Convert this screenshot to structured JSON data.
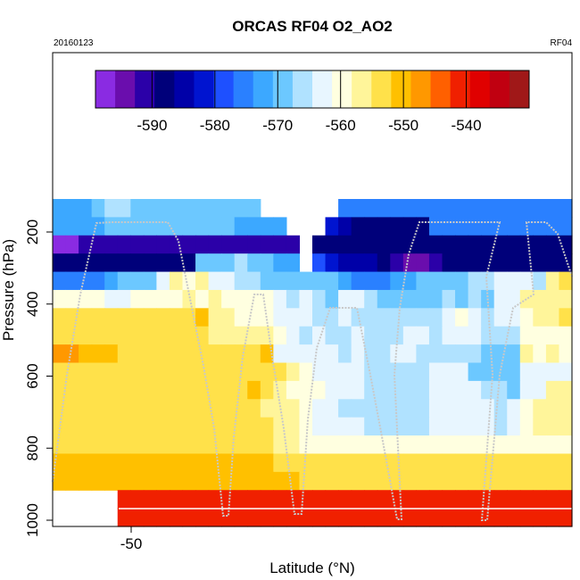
{
  "chart_data": {
    "type": "heatmap",
    "title": "ORCAS RF04 O2_AO2",
    "subtitle_left": "20160123",
    "subtitle_right": "RF04",
    "xlabel": "Latitude (°N)",
    "ylabel": "Pressure (hPa)",
    "x_ticks": [
      "-50"
    ],
    "y_ticks": [
      "200",
      "400",
      "600",
      "800",
      "1000"
    ],
    "colorbar": {
      "range": [
        -599,
        -530
      ],
      "ticks": [
        "-590",
        "-580",
        "-570",
        "-560",
        "-550",
        "-540"
      ],
      "colors": [
        "#8a2be2",
        "#6a0dad",
        "#2b00a8",
        "#00007a",
        "#0000a8",
        "#0014d0",
        "#1e50ff",
        "#2a80ff",
        "#3ca8ff",
        "#6cc8ff",
        "#b0e2ff",
        "#e8f6ff",
        "#ffffe0",
        "#fff59a",
        "#ffe14a",
        "#ffc000",
        "#ff9800",
        "#ff6000",
        "#f02000",
        "#e00000",
        "#c00010",
        "#a01818"
      ]
    },
    "levels_hPa": [
      150,
      200,
      250,
      300,
      350,
      400,
      450,
      500,
      550,
      600,
      650,
      700,
      750,
      800,
      850,
      900,
      950,
      1000
    ],
    "grid_note": "rows = pressure levels (top to bottom), columns = latitude bins west to east; values in colorbar units, null = no data",
    "values": [
      [
        -572,
        -572,
        -572,
        -570,
        -566,
        -566,
        -568,
        -568,
        -568,
        -568,
        -568,
        -568,
        -568,
        -568,
        -568,
        -568,
        null,
        null,
        null,
        null,
        null,
        null,
        -574,
        -574,
        -574,
        -574,
        -574,
        -574,
        -574,
        -574,
        -574,
        -574,
        -574,
        -574,
        -574,
        -574,
        -574,
        -574,
        -574,
        -574
      ],
      [
        -572,
        -572,
        -572,
        -572,
        -568,
        -568,
        -568,
        -570,
        -570,
        -570,
        -570,
        -570,
        -570,
        -570,
        -571,
        -571,
        -571,
        -571,
        null,
        null,
        null,
        -583,
        -585,
        -587,
        -587,
        -587,
        -587,
        -587,
        -587,
        -574,
        -574,
        -574,
        -574,
        -574,
        -574,
        -574,
        -574,
        -574,
        -574,
        -574
      ],
      [
        -597,
        -597,
        -591,
        -591,
        -591,
        -591,
        -591,
        -591,
        -591,
        -591,
        -591,
        -591,
        -591,
        -591,
        -591,
        -591,
        -591,
        -591,
        -591,
        null,
        -589,
        -589,
        -589,
        -589,
        -589,
        -589,
        -589,
        -589,
        -589,
        -589,
        -589,
        -589,
        -589,
        -589,
        -589,
        -589,
        -589,
        -589,
        -589,
        -589
      ],
      [
        -589,
        -589,
        -589,
        -589,
        -589,
        -589,
        -589,
        -589,
        -589,
        -589,
        -589,
        -568,
        -570,
        -568,
        -566,
        -568,
        -570,
        -573,
        -573,
        null,
        -580,
        -582,
        -585,
        -586,
        -586,
        -589,
        -591,
        -594,
        -593,
        -591,
        -589,
        -589,
        -587,
        -587,
        -587,
        -587,
        -587,
        -587,
        -587,
        -589
      ],
      [
        -574,
        -576,
        -574,
        -576,
        -572,
        -570,
        -568,
        -570,
        -562,
        -558,
        -560,
        -558,
        -562,
        -564,
        -566,
        -566,
        -568,
        -570,
        -568,
        -570,
        -570,
        -568,
        -572,
        -574,
        -574,
        -576,
        -572,
        -572,
        -568,
        -570,
        -568,
        -570,
        -566,
        -566,
        -564,
        -564,
        -562,
        -566,
        -558,
        -554
      ],
      [
        -560,
        -561,
        -560,
        -560,
        -562,
        -562,
        -561,
        -560,
        -560,
        -560,
        -558,
        -560,
        -558,
        -560,
        -559,
        -559,
        -561,
        -563,
        -566,
        -564,
        -566,
        -568,
        -564,
        -562,
        -566,
        -570,
        -570,
        -570,
        -568,
        -568,
        -566,
        -568,
        -566,
        -568,
        -564,
        -562,
        -558,
        -558,
        -556,
        -558
      ],
      [
        -552,
        -552,
        -554,
        -554,
        -553,
        -553,
        -553,
        -553,
        -553,
        -553,
        -553,
        -550,
        -556,
        -558,
        -559,
        -561,
        -561,
        -563,
        -563,
        -563,
        -565,
        -567,
        -563,
        -565,
        -565,
        -565,
        -567,
        -567,
        -565,
        -565,
        -563,
        -561,
        -563,
        -565,
        -562,
        -563,
        -560,
        -558,
        -557,
        -552
      ],
      [
        -552,
        -554,
        -554,
        -554,
        -554,
        -552,
        -554,
        -552,
        -552,
        -552,
        -552,
        -555,
        -558,
        -558,
        -558,
        -558,
        -558,
        -560,
        -563,
        -567,
        -563,
        -567,
        -565,
        -563,
        -567,
        -565,
        -565,
        -563,
        -563,
        -565,
        -563,
        -563,
        -563,
        -565,
        -567,
        -565,
        -560,
        -560,
        -560,
        -560
      ],
      [
        -548,
        -548,
        -551,
        -551,
        -551,
        -553,
        -553,
        -553,
        -553,
        -553,
        -553,
        -553,
        -553,
        -553,
        -553,
        -553,
        -551,
        -562,
        -563,
        -564,
        -563,
        -563,
        -566,
        -564,
        -566,
        -566,
        -564,
        -564,
        -566,
        -566,
        -566,
        -566,
        -567,
        -568,
        -569,
        -569,
        -557,
        -560,
        -557,
        -560
      ],
      [
        -553,
        -553,
        -553,
        -552,
        -553,
        -553,
        -552,
        -552,
        -553,
        -553,
        -553,
        -553,
        -553,
        -553,
        -553,
        -553,
        -553,
        -555,
        -558,
        -561,
        -562,
        -563,
        -564,
        -564,
        -565,
        -565,
        -565,
        -565,
        -565,
        -563,
        -563,
        -563,
        -570,
        -570,
        -568,
        -568,
        -562,
        -562,
        -562,
        -562
      ],
      [
        -553,
        -553,
        -553,
        -553,
        -553,
        -553,
        -553,
        -553,
        -553,
        -553,
        -553,
        -553,
        -553,
        -553,
        -553,
        -551,
        -553,
        -558,
        -559,
        -561,
        -561,
        -563,
        -563,
        -563,
        -565,
        -565,
        -565,
        -565,
        -565,
        -563,
        -563,
        -563,
        -563,
        -565,
        -567,
        -568,
        -564,
        -564,
        -556,
        -558
      ],
      [
        -553,
        -553,
        -553,
        -553,
        -553,
        -553,
        -553,
        -553,
        -553,
        -553,
        -553,
        -553,
        -553,
        -553,
        -553,
        -553,
        -556,
        -556,
        -558,
        -561,
        -563,
        -563,
        -565,
        -565,
        -565,
        -565,
        -565,
        -565,
        -565,
        -563,
        -563,
        -563,
        -563,
        -563,
        -565,
        -563,
        -560,
        -558,
        -558,
        -558
      ],
      [
        -553,
        -553,
        -553,
        -553,
        -553,
        -553,
        -553,
        -553,
        -553,
        -553,
        -553,
        -553,
        -553,
        -553,
        -553,
        -553,
        -553,
        -556,
        -558,
        -561,
        -563,
        -563,
        -563,
        -563,
        -565,
        -565,
        -565,
        -565,
        -565,
        -563,
        -563,
        -563,
        -563,
        -563,
        -565,
        -563,
        -560,
        -558,
        -558,
        -558
      ],
      [
        -552,
        -552,
        -552,
        -552,
        -552,
        -552,
        -552,
        -552,
        -552,
        -552,
        -552,
        -552,
        -553,
        -553,
        -553,
        -553,
        -553,
        -556,
        -558,
        -561,
        -561,
        -561,
        -561,
        -561,
        -561,
        -560,
        -560,
        -561,
        -561,
        -560,
        -560,
        -560,
        -560,
        -560,
        -560,
        -560,
        -561,
        -561,
        -561,
        -561
      ],
      [
        -550,
        -550,
        -550,
        -550,
        -550,
        -550,
        -550,
        -550,
        -550,
        -550,
        -550,
        -550,
        -550,
        -550,
        -550,
        -550,
        -551,
        -552,
        -553,
        -553,
        -554,
        -554,
        -555,
        -555,
        -555,
        -555,
        -555,
        -555,
        -555,
        -555,
        -555,
        -555,
        -555,
        -555,
        -555,
        -555,
        -555,
        -555,
        -555,
        -555
      ],
      [
        -551,
        -551,
        -551,
        -551,
        -551,
        -551,
        -551,
        -551,
        -551,
        -551,
        -551,
        -551,
        -551,
        -551,
        -551,
        -551,
        -551,
        -551,
        -551,
        -552,
        -552,
        -552,
        -553,
        -553,
        -553,
        -553,
        -553,
        -553,
        -553,
        -553,
        -553,
        -553,
        -553,
        -553,
        -553,
        -553,
        -553,
        -553,
        -553,
        -553
      ],
      [
        null,
        null,
        null,
        null,
        null,
        -542,
        -542,
        -542,
        -542,
        -542,
        -542,
        -542,
        -542,
        -542,
        -542,
        -542,
        -542,
        -542,
        -542,
        -542,
        -542,
        -542,
        -542,
        -542,
        -542,
        -542,
        -542,
        -542,
        -542,
        -542,
        -542,
        -542,
        -542,
        -542,
        -542,
        -542,
        -542,
        -542,
        -542,
        -542
      ],
      [
        null,
        null,
        null,
        null,
        null,
        -542,
        -542,
        -542,
        -542,
        -542,
        -542,
        -542,
        -542,
        -542,
        -542,
        -542,
        -542,
        -542,
        -542,
        -542,
        -542,
        -542,
        -542,
        -542,
        -542,
        -542,
        -542,
        -542,
        -542,
        -542,
        -542,
        -542,
        -542,
        -542,
        -542,
        -542,
        -542,
        -542,
        -542,
        -542
      ]
    ],
    "flight_track_note": "grey dotted line = aircraft vertical profiles"
  }
}
